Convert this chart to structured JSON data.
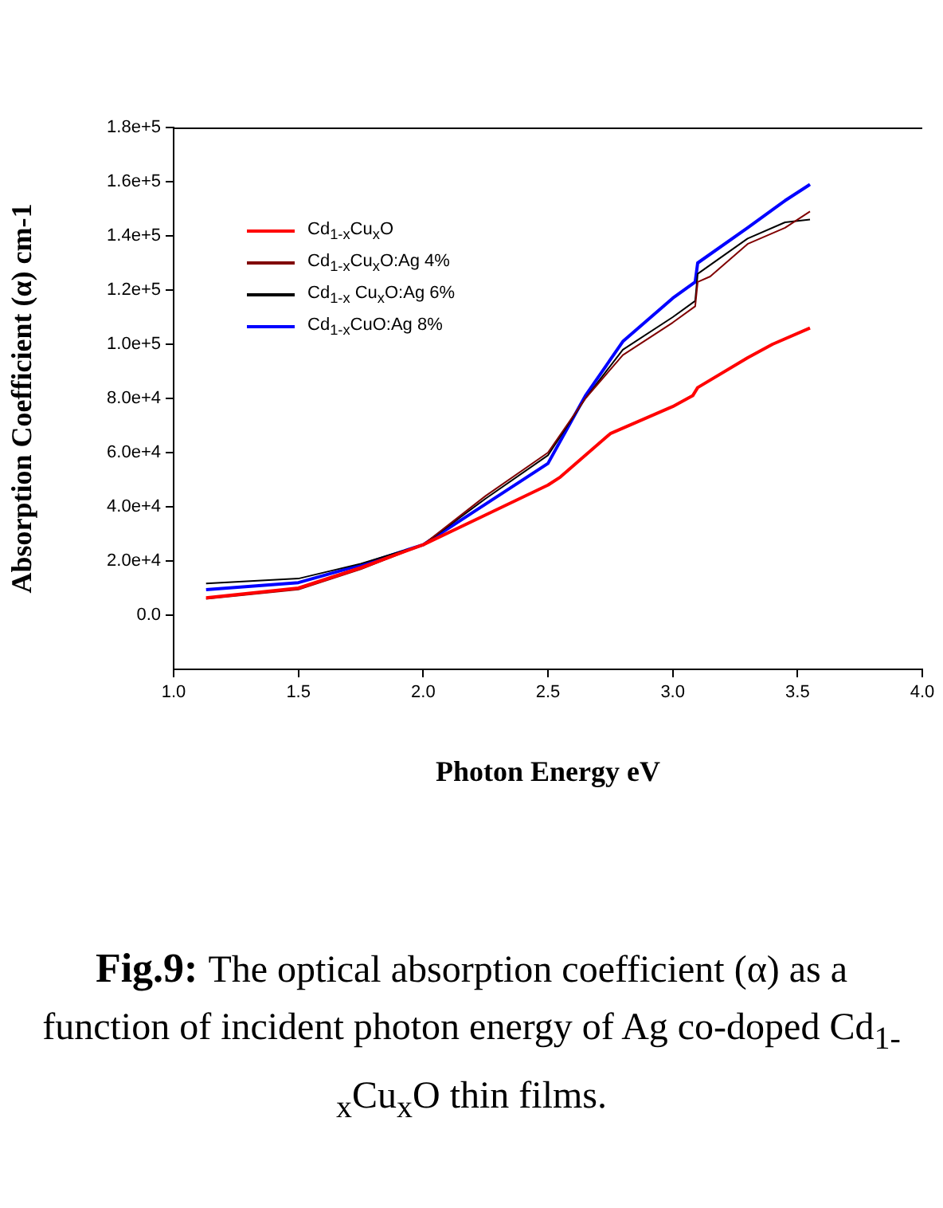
{
  "chart_data": {
    "type": "line",
    "xlabel": "Photon Energy eV",
    "ylabel": "Absorption Coefficient (α) cm-1",
    "xlim": [
      1.0,
      4.0
    ],
    "xticks": [
      {
        "value": 1,
        "label": "1.0"
      },
      {
        "value": 1.5,
        "label": "1.5"
      },
      {
        "value": 2,
        "label": "2.0"
      },
      {
        "value": 2.5,
        "label": "2.5"
      },
      {
        "value": 3,
        "label": "3.0"
      },
      {
        "value": 3.5,
        "label": "3.5"
      },
      {
        "value": 4,
        "label": "4.0"
      }
    ],
    "ylim": [
      -20000,
      180000
    ],
    "yticks": [
      {
        "value": 0,
        "label": "0.0"
      },
      {
        "value": 20000,
        "label": "2.0e+4"
      },
      {
        "value": 40000,
        "label": "4.0e+4"
      },
      {
        "value": 60000,
        "label": "6.0e+4"
      },
      {
        "value": 80000,
        "label": "8.0e+4"
      },
      {
        "value": 100000,
        "label": "1.0e+5"
      },
      {
        "value": 120000,
        "label": "1.2e+5"
      },
      {
        "value": 140000,
        "label": "1.4e+5"
      },
      {
        "value": 160000,
        "label": "1.6e+5"
      },
      {
        "value": 180000,
        "label": "1.8e+5"
      }
    ],
    "grid": false,
    "legend": "top left",
    "marker": "none",
    "line_style": "solid",
    "series": [
      {
        "name": "Cd$_{1-x}$Cu$_{x}$O",
        "color": "#ff0000",
        "x": [
          1.13,
          1.5,
          1.75,
          2.0,
          2.25,
          2.5,
          2.55,
          2.75,
          3.0,
          3.08,
          3.1,
          3.3,
          3.4,
          3.55
        ],
        "values": [
          6400,
          10000,
          17500,
          26000,
          37000,
          48000,
          51000,
          67000,
          77000,
          81000,
          84000,
          95000,
          100000,
          106000
        ]
      },
      {
        "name": "Cd$_{1-x}$Cu$_{x}$O:Ag 4%",
        "color": "#800000",
        "x": [
          1.13,
          1.5,
          1.75,
          2.0,
          2.25,
          2.5,
          2.65,
          2.8,
          3.0,
          3.09,
          3.1,
          3.15,
          3.3,
          3.45,
          3.55
        ],
        "values": [
          6000,
          9500,
          17000,
          26000,
          44000,
          60000,
          80000,
          96000,
          108000,
          114000,
          123000,
          125000,
          137000,
          143000,
          149000
        ]
      },
      {
        "name": "Cd$_{1-x}$ Cu$_{x}$O:Ag 6%",
        "color": "#000000",
        "x": [
          1.13,
          1.5,
          1.75,
          2.0,
          2.25,
          2.5,
          2.65,
          2.8,
          3.0,
          3.09,
          3.1,
          3.3,
          3.45,
          3.55
        ],
        "values": [
          11700,
          13500,
          19000,
          26000,
          43000,
          59000,
          80000,
          98000,
          110000,
          116000,
          126000,
          139000,
          145000,
          146000
        ]
      },
      {
        "name": "Cd$_{1-x}$CuO:Ag 8%",
        "color": "#0000ff",
        "x": [
          1.13,
          1.5,
          1.75,
          2.0,
          2.25,
          2.5,
          2.65,
          2.8,
          3.0,
          3.09,
          3.1,
          3.3,
          3.45,
          3.55
        ],
        "values": [
          9400,
          12000,
          18500,
          26000,
          41000,
          56000,
          81000,
          101000,
          117000,
          123000,
          130000,
          143000,
          153000,
          159000
        ]
      }
    ],
    "annotations": [
      "Fig.9:",
      "The optical absorption coefficient (α) as a function of incident photon energy of Ag co-doped Cd$_{1-x}$Cu$_{x}$O thin films."
    ]
  }
}
